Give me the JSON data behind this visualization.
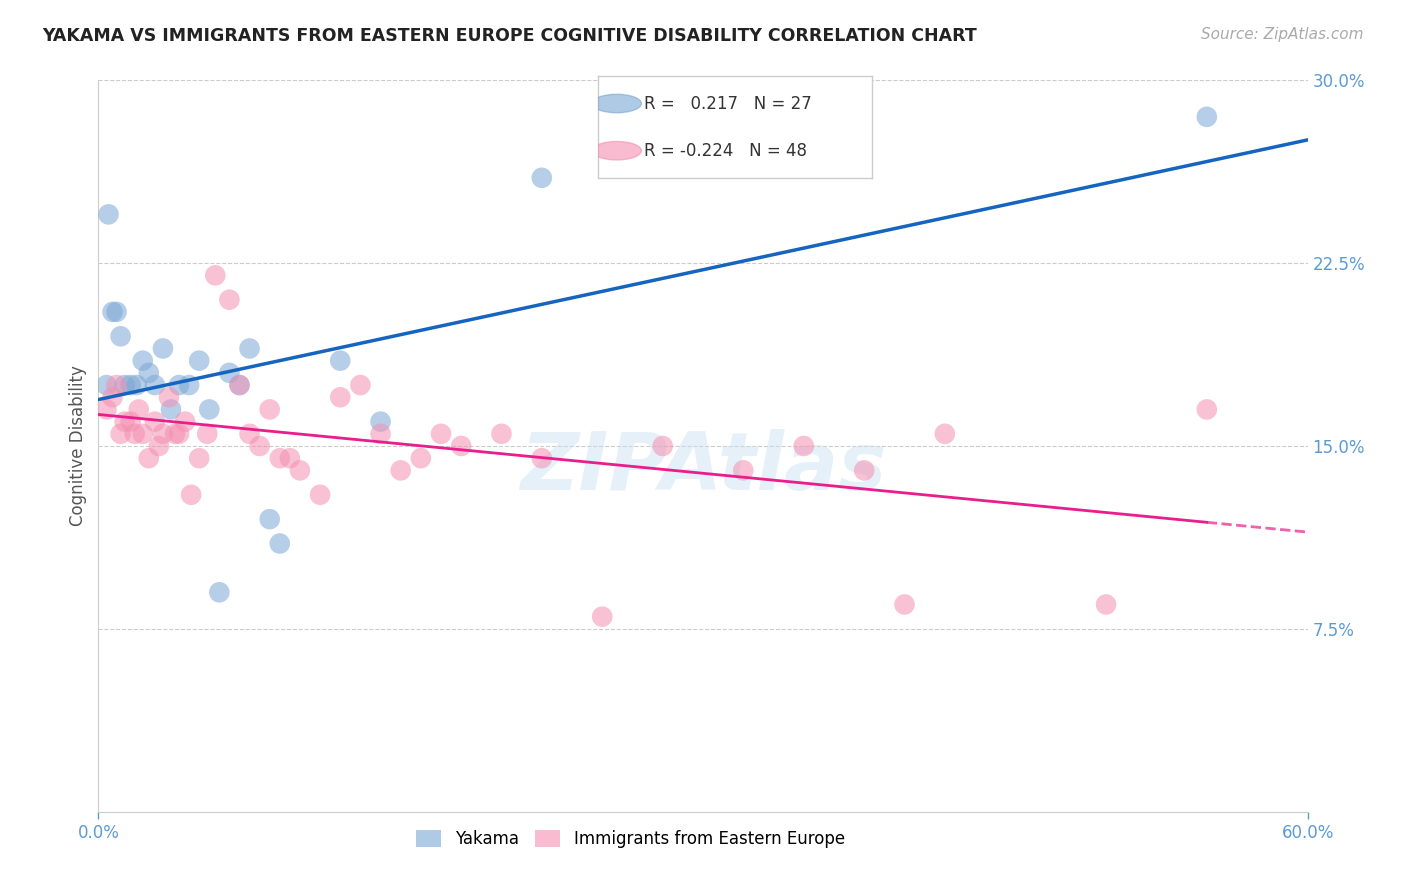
{
  "title": "YAKAMA VS IMMIGRANTS FROM EASTERN EUROPE COGNITIVE DISABILITY CORRELATION CHART",
  "source": "Source: ZipAtlas.com",
  "ylabel": "Cognitive Disability",
  "xlim": [
    0.0,
    0.6
  ],
  "ylim": [
    0.0,
    0.3
  ],
  "yticks": [
    0.075,
    0.15,
    0.225,
    0.3
  ],
  "ytick_labels": [
    "7.5%",
    "15.0%",
    "22.5%",
    "30.0%"
  ],
  "yakama_R": 0.217,
  "yakama_N": 27,
  "eastern_europe_R": -0.224,
  "eastern_europe_N": 48,
  "yakama_color": "#7ba7d4",
  "eastern_europe_color": "#f48fb1",
  "trend_blue": "#1565c0",
  "trend_pink": "#e91e8c",
  "watermark": "ZIPAtlas",
  "yakama_x": [
    0.004,
    0.005,
    0.007,
    0.009,
    0.011,
    0.013,
    0.016,
    0.019,
    0.022,
    0.025,
    0.028,
    0.032,
    0.036,
    0.04,
    0.045,
    0.05,
    0.055,
    0.06,
    0.065,
    0.07,
    0.075,
    0.085,
    0.09,
    0.12,
    0.14,
    0.22,
    0.55
  ],
  "yakama_y": [
    0.175,
    0.245,
    0.205,
    0.205,
    0.195,
    0.175,
    0.175,
    0.175,
    0.185,
    0.18,
    0.175,
    0.19,
    0.165,
    0.175,
    0.175,
    0.185,
    0.165,
    0.09,
    0.18,
    0.175,
    0.19,
    0.12,
    0.11,
    0.185,
    0.16,
    0.26,
    0.285
  ],
  "eastern_europe_x": [
    0.004,
    0.007,
    0.009,
    0.011,
    0.013,
    0.016,
    0.018,
    0.02,
    0.022,
    0.025,
    0.028,
    0.03,
    0.032,
    0.035,
    0.038,
    0.04,
    0.043,
    0.046,
    0.05,
    0.054,
    0.058,
    0.065,
    0.07,
    0.075,
    0.08,
    0.085,
    0.09,
    0.095,
    0.1,
    0.11,
    0.12,
    0.13,
    0.14,
    0.15,
    0.16,
    0.17,
    0.18,
    0.2,
    0.22,
    0.25,
    0.28,
    0.32,
    0.35,
    0.38,
    0.4,
    0.42,
    0.5,
    0.55
  ],
  "eastern_europe_y": [
    0.165,
    0.17,
    0.175,
    0.155,
    0.16,
    0.16,
    0.155,
    0.165,
    0.155,
    0.145,
    0.16,
    0.15,
    0.155,
    0.17,
    0.155,
    0.155,
    0.16,
    0.13,
    0.145,
    0.155,
    0.22,
    0.21,
    0.175,
    0.155,
    0.15,
    0.165,
    0.145,
    0.145,
    0.14,
    0.13,
    0.17,
    0.175,
    0.155,
    0.14,
    0.145,
    0.155,
    0.15,
    0.155,
    0.145,
    0.08,
    0.15,
    0.14,
    0.15,
    0.14,
    0.085,
    0.155,
    0.085,
    0.165
  ]
}
